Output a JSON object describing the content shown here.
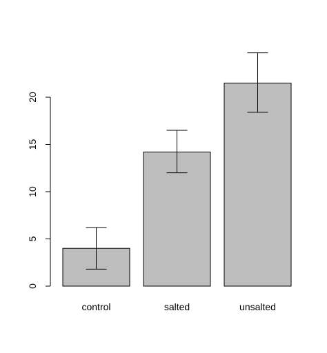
{
  "chart_data": {
    "type": "bar",
    "title": "",
    "xlabel": "",
    "ylabel": "",
    "categories": [
      "control",
      "salted",
      "unsalted"
    ],
    "values": [
      4.0,
      14.2,
      21.5
    ],
    "error_low": [
      1.8,
      12.0,
      18.4
    ],
    "error_high": [
      6.2,
      16.5,
      24.7
    ],
    "ylim": [
      0,
      25
    ],
    "yticks": [
      "0",
      "5",
      "10",
      "15",
      "20"
    ],
    "bar_color": "#bebebe",
    "grid": false,
    "legend": "none"
  }
}
